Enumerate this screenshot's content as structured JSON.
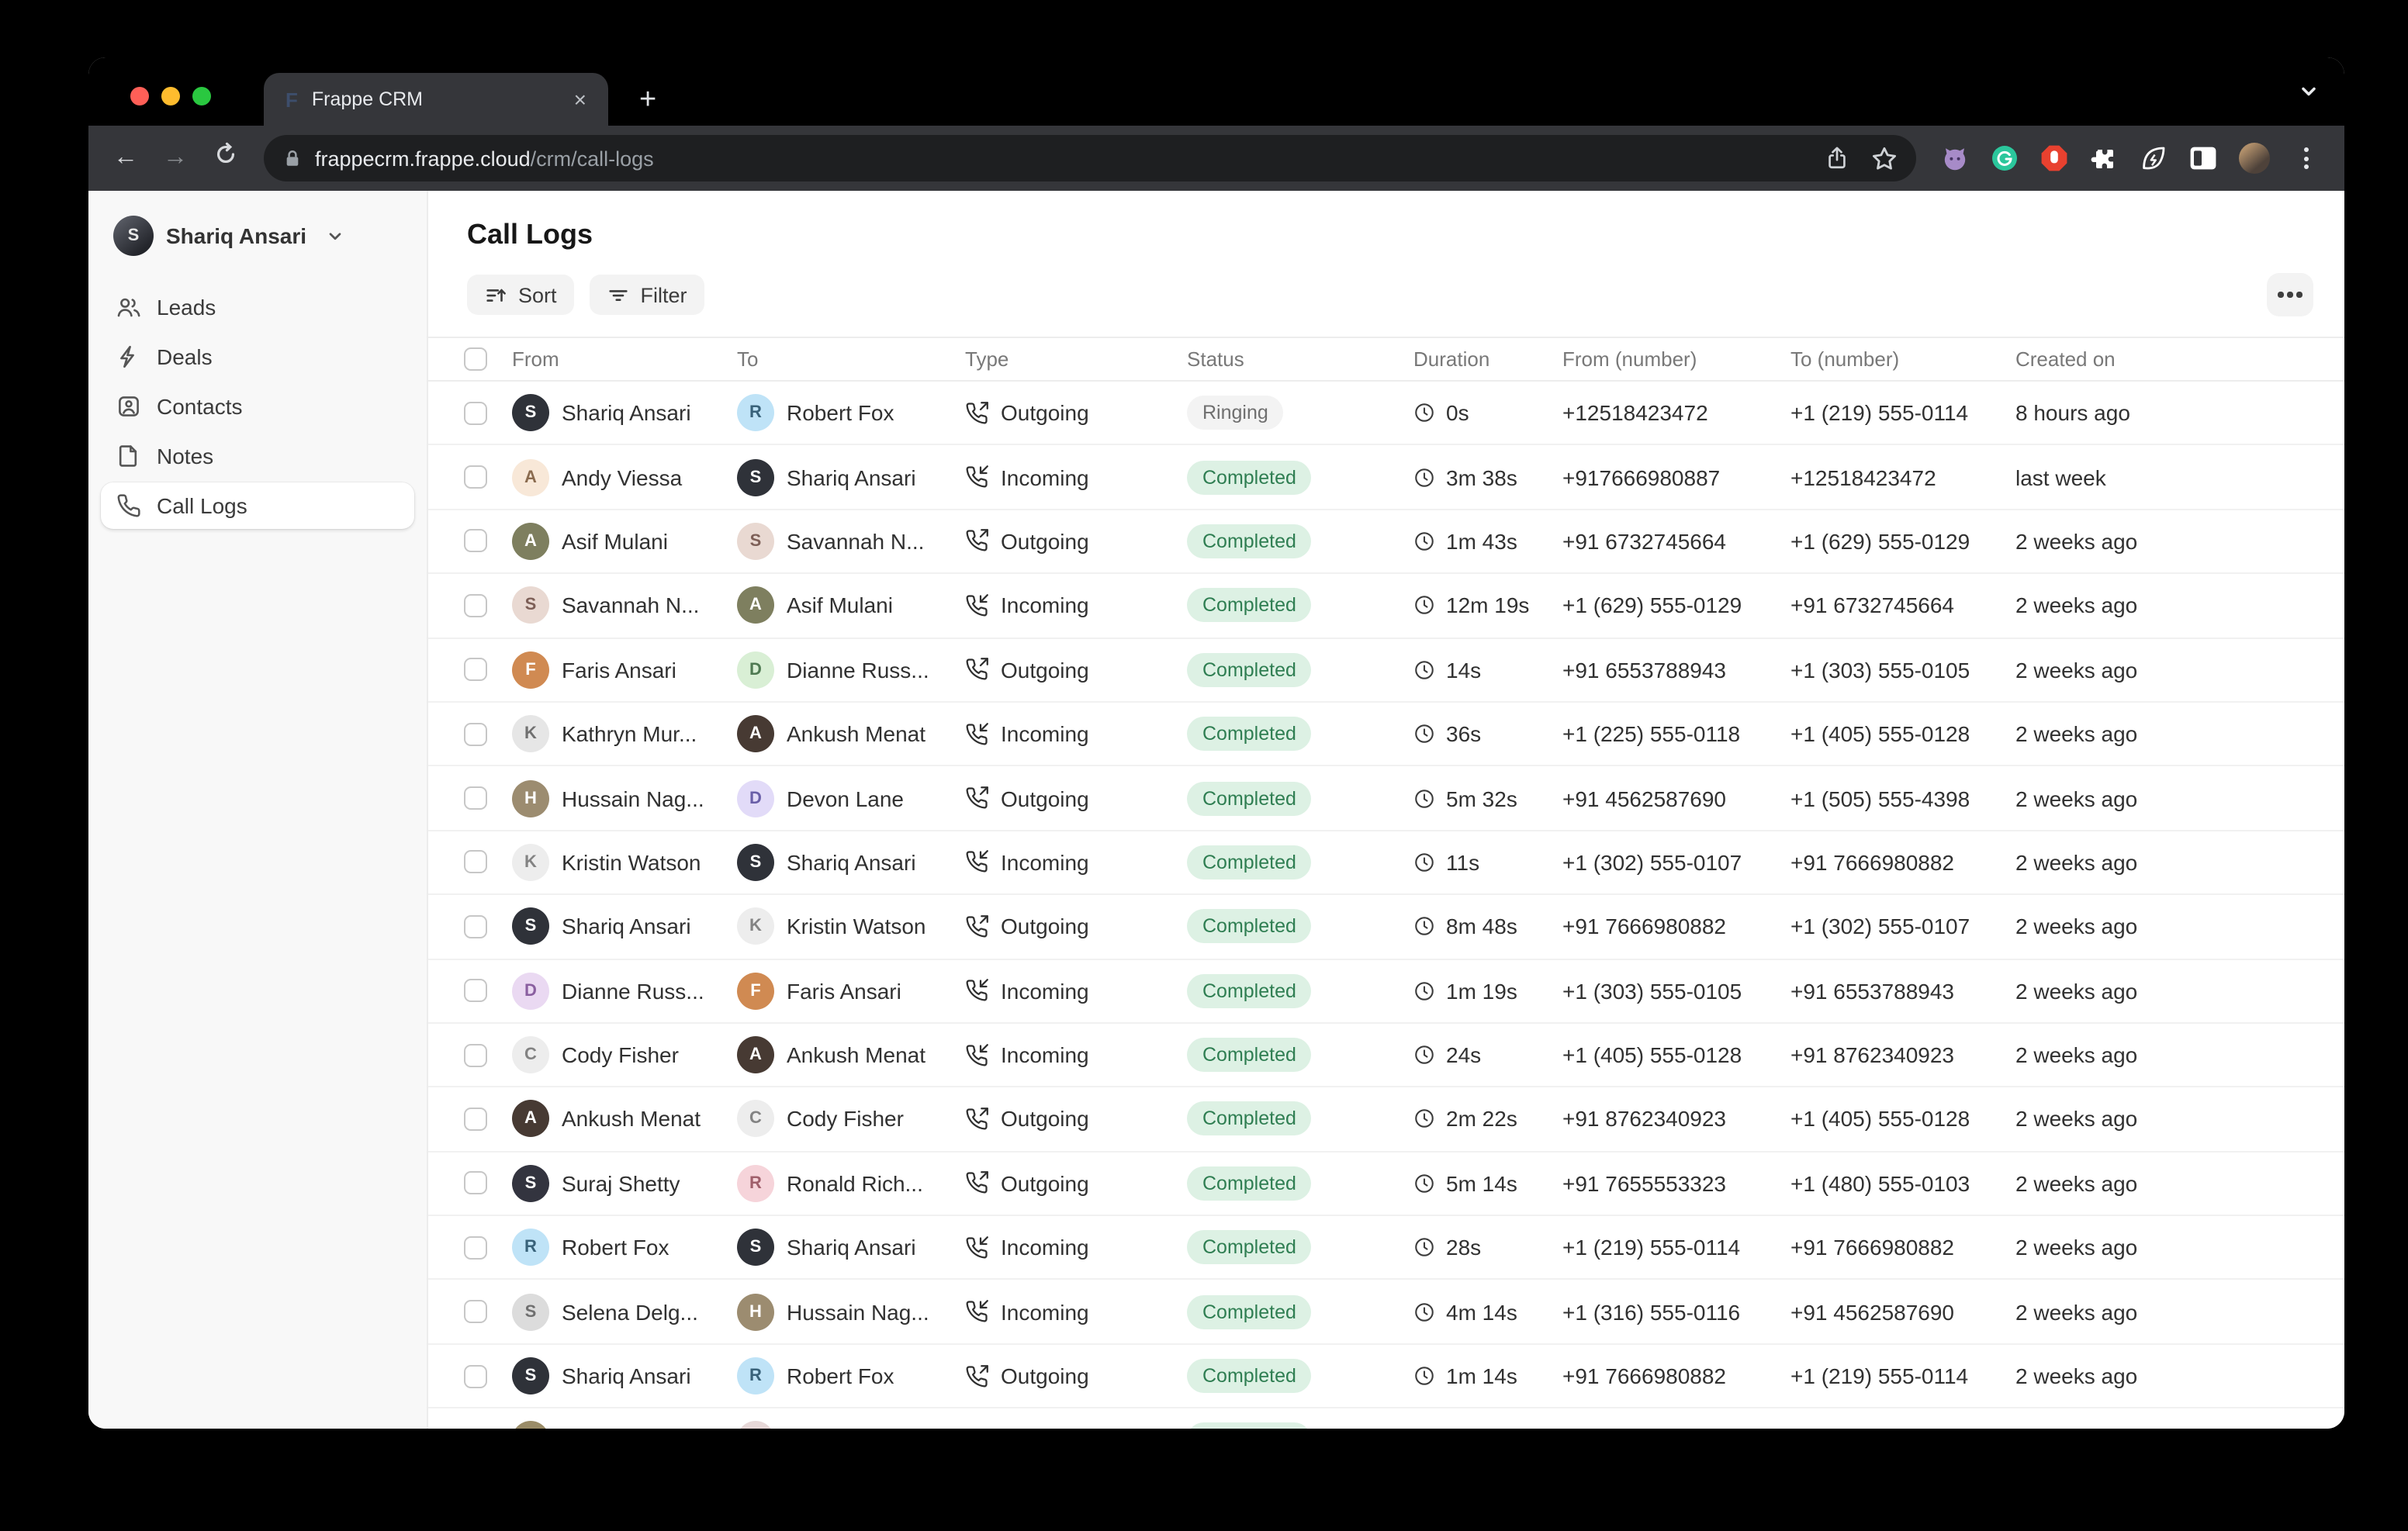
{
  "browser": {
    "tab_title": "Frappe CRM",
    "tab_close": "×",
    "new_tab": "+",
    "favicon_letter": "F",
    "back": "←",
    "forward": "→",
    "url_host": "frappecrm.frappe.cloud",
    "url_path": "/crm/call-logs",
    "traffic_lights": {
      "close": "#ff5f57",
      "minimize": "#febc2e",
      "zoom": "#2ac840"
    }
  },
  "sidebar": {
    "user": {
      "name": "Shariq Ansari",
      "initial": "S"
    },
    "items": [
      {
        "label": "Leads",
        "icon": "leads",
        "active": false
      },
      {
        "label": "Deals",
        "icon": "deals",
        "active": false
      },
      {
        "label": "Contacts",
        "icon": "contacts",
        "active": false
      },
      {
        "label": "Notes",
        "icon": "notes",
        "active": false
      },
      {
        "label": "Call Logs",
        "icon": "phone",
        "active": true
      }
    ]
  },
  "header": {
    "title": "Call Logs",
    "sort_label": "Sort",
    "filter_label": "Filter"
  },
  "colors": {
    "badge_completed_bg": "#ddf1e4",
    "badge_completed_text": "#2f7e52",
    "badge_ringing_bg": "#f3f3f3",
    "badge_ringing_text": "#6f6f6f",
    "sidebar_bg": "#f8f8f8",
    "toolbar_bg": "#35363a",
    "omnibox_bg": "#1e1f21"
  },
  "table": {
    "columns": [
      "From",
      "To",
      "Type",
      "Status",
      "Duration",
      "From (number)",
      "To (number)",
      "Created on"
    ],
    "rows": [
      {
        "from": {
          "name": "Shariq Ansari",
          "initial": "S",
          "bg": "#2f3239",
          "fg": "#ffffff"
        },
        "to": {
          "name": "Robert Fox",
          "initial": "R",
          "bg": "#bfe3f7",
          "fg": "#39627a"
        },
        "type": "Outgoing",
        "status": "Ringing",
        "duration": "0s",
        "from_number": "+12518423472",
        "to_number": "+1 (219) 555-0114",
        "created": "8 hours ago"
      },
      {
        "from": {
          "name": "Andy Viessa",
          "initial": "A",
          "bg": "#f8e8d8",
          "fg": "#8a6b4f"
        },
        "to": {
          "name": "Shariq Ansari",
          "initial": "S",
          "bg": "#2f3239",
          "fg": "#ffffff"
        },
        "type": "Incoming",
        "status": "Completed",
        "duration": "3m 38s",
        "from_number": "+917666980887",
        "to_number": "+12518423472",
        "created": "last week"
      },
      {
        "from": {
          "name": "Asif Mulani",
          "initial": "A",
          "bg": "#7e7f5f",
          "fg": "#ffffff"
        },
        "to": {
          "name": "Savannah N...",
          "initial": "S",
          "bg": "#e9d9d2",
          "fg": "#7d5f57"
        },
        "type": "Outgoing",
        "status": "Completed",
        "duration": "1m 43s",
        "from_number": "+91 6732745664",
        "to_number": "+1 (629) 555-0129",
        "created": "2 weeks ago"
      },
      {
        "from": {
          "name": "Savannah N...",
          "initial": "S",
          "bg": "#e9d9d2",
          "fg": "#7d5f57"
        },
        "to": {
          "name": "Asif Mulani",
          "initial": "A",
          "bg": "#7e7f5f",
          "fg": "#ffffff"
        },
        "type": "Incoming",
        "status": "Completed",
        "duration": "12m 19s",
        "from_number": "+1 (629) 555-0129",
        "to_number": "+91 6732745664",
        "created": "2 weeks ago"
      },
      {
        "from": {
          "name": "Faris Ansari",
          "initial": "F",
          "bg": "#d08a52",
          "fg": "#ffffff"
        },
        "to": {
          "name": "Dianne Russ...",
          "initial": "D",
          "bg": "#d9efd5",
          "fg": "#4f7a52"
        },
        "type": "Outgoing",
        "status": "Completed",
        "duration": "14s",
        "from_number": "+91 6553788943",
        "to_number": "+1 (303) 555-0105",
        "created": "2 weeks ago"
      },
      {
        "from": {
          "name": "Kathryn Mur...",
          "initial": "K",
          "bg": "#e6e6e6",
          "fg": "#707070"
        },
        "to": {
          "name": "Ankush Menat",
          "initial": "A",
          "bg": "#473a33",
          "fg": "#ffffff"
        },
        "type": "Incoming",
        "status": "Completed",
        "duration": "36s",
        "from_number": "+1 (225) 555-0118",
        "to_number": "+1 (405) 555-0128",
        "created": "2 weeks ago"
      },
      {
        "from": {
          "name": "Hussain Nag...",
          "initial": "H",
          "bg": "#9c8c70",
          "fg": "#ffffff"
        },
        "to": {
          "name": "Devon Lane",
          "initial": "D",
          "bg": "#e2dbf8",
          "fg": "#6a5fa8"
        },
        "type": "Outgoing",
        "status": "Completed",
        "duration": "5m 32s",
        "from_number": "+91 4562587690",
        "to_number": "+1 (505) 555-4398",
        "created": "2 weeks ago"
      },
      {
        "from": {
          "name": "Kristin Watson",
          "initial": "K",
          "bg": "#ededed",
          "fg": "#838383"
        },
        "to": {
          "name": "Shariq Ansari",
          "initial": "S",
          "bg": "#2f3239",
          "fg": "#ffffff"
        },
        "type": "Incoming",
        "status": "Completed",
        "duration": "11s",
        "from_number": "+1 (302) 555-0107",
        "to_number": "+91 7666980882",
        "created": "2 weeks ago"
      },
      {
        "from": {
          "name": "Shariq Ansari",
          "initial": "S",
          "bg": "#2f3239",
          "fg": "#ffffff"
        },
        "to": {
          "name": "Kristin Watson",
          "initial": "K",
          "bg": "#ededed",
          "fg": "#838383"
        },
        "type": "Outgoing",
        "status": "Completed",
        "duration": "8m 48s",
        "from_number": "+91 7666980882",
        "to_number": "+1 (302) 555-0107",
        "created": "2 weeks ago"
      },
      {
        "from": {
          "name": "Dianne Russ...",
          "initial": "D",
          "bg": "#ead9f2",
          "fg": "#8a5fa0"
        },
        "to": {
          "name": "Faris Ansari",
          "initial": "F",
          "bg": "#d08a52",
          "fg": "#ffffff"
        },
        "type": "Incoming",
        "status": "Completed",
        "duration": "1m 19s",
        "from_number": "+1 (303) 555-0105",
        "to_number": "+91 6553788943",
        "created": "2 weeks ago"
      },
      {
        "from": {
          "name": "Cody Fisher",
          "initial": "C",
          "bg": "#ededed",
          "fg": "#838383"
        },
        "to": {
          "name": "Ankush Menat",
          "initial": "A",
          "bg": "#473a33",
          "fg": "#ffffff"
        },
        "type": "Incoming",
        "status": "Completed",
        "duration": "24s",
        "from_number": "+1 (405) 555-0128",
        "to_number": "+91 8762340923",
        "created": "2 weeks ago"
      },
      {
        "from": {
          "name": "Ankush Menat",
          "initial": "A",
          "bg": "#473a33",
          "fg": "#ffffff"
        },
        "to": {
          "name": "Cody Fisher",
          "initial": "C",
          "bg": "#ededed",
          "fg": "#838383"
        },
        "type": "Outgoing",
        "status": "Completed",
        "duration": "2m 22s",
        "from_number": "+91 8762340923",
        "to_number": "+1 (405) 555-0128",
        "created": "2 weeks ago"
      },
      {
        "from": {
          "name": "Suraj Shetty",
          "initial": "S",
          "bg": "#33343f",
          "fg": "#ffffff"
        },
        "to": {
          "name": "Ronald Rich...",
          "initial": "R",
          "bg": "#f6d4da",
          "fg": "#a05f6b"
        },
        "type": "Outgoing",
        "status": "Completed",
        "duration": "5m 14s",
        "from_number": "+91 7655553323",
        "to_number": "+1 (480) 555-0103",
        "created": "2 weeks ago"
      },
      {
        "from": {
          "name": "Robert Fox",
          "initial": "R",
          "bg": "#bfe3f7",
          "fg": "#39627a"
        },
        "to": {
          "name": "Shariq Ansari",
          "initial": "S",
          "bg": "#2f3239",
          "fg": "#ffffff"
        },
        "type": "Incoming",
        "status": "Completed",
        "duration": "28s",
        "from_number": "+1 (219) 555-0114",
        "to_number": "+91 7666980882",
        "created": "2 weeks ago"
      },
      {
        "from": {
          "name": "Selena Delg...",
          "initial": "S",
          "bg": "#dcdcdc",
          "fg": "#6f6f6f"
        },
        "to": {
          "name": "Hussain Nag...",
          "initial": "H",
          "bg": "#9c8c70",
          "fg": "#ffffff"
        },
        "type": "Incoming",
        "status": "Completed",
        "duration": "4m 14s",
        "from_number": "+1 (316) 555-0116",
        "to_number": "+91 4562587690",
        "created": "2 weeks ago"
      },
      {
        "from": {
          "name": "Shariq Ansari",
          "initial": "S",
          "bg": "#2f3239",
          "fg": "#ffffff"
        },
        "to": {
          "name": "Robert Fox",
          "initial": "R",
          "bg": "#bfe3f7",
          "fg": "#39627a"
        },
        "type": "Outgoing",
        "status": "Completed",
        "duration": "1m 14s",
        "from_number": "+91 7666980882",
        "to_number": "+1 (219) 555-0114",
        "created": "2 weeks ago"
      },
      {
        "from": {
          "name": "",
          "initial": "",
          "bg": "#9a8c68",
          "fg": "#ffffff"
        },
        "to": {
          "name": "",
          "initial": "",
          "bg": "#e7d8d8",
          "fg": "#888888"
        },
        "type": "",
        "status": "Completed",
        "duration": "",
        "from_number": "",
        "to_number": "",
        "created": ""
      }
    ]
  }
}
